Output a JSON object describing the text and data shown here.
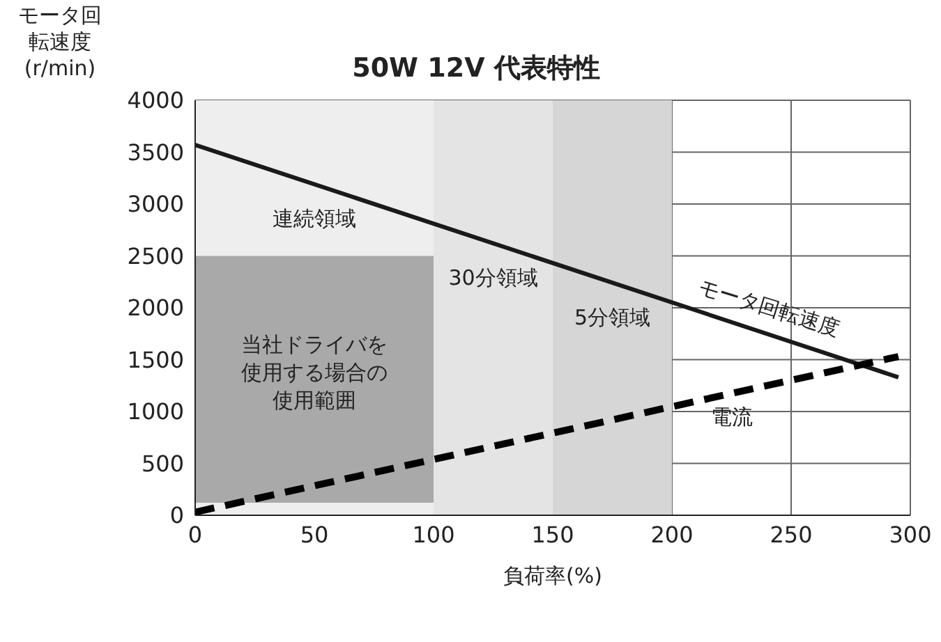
{
  "chart_data": {
    "type": "line",
    "title": "50W 12V 代表特性",
    "xlabel": "負荷率(%)",
    "ylabel": "モータ回転速度(r/min)",
    "x": [
      0,
      295
    ],
    "series": [
      {
        "name": "モータ回転速度",
        "color": "#1a1a1a",
        "values": [
          3570,
          1330
        ],
        "line_style": "solid"
      },
      {
        "name": "電流",
        "color": "#000000",
        "values": [
          30,
          1530
        ],
        "line_style": "dashed"
      }
    ],
    "xlim": [
      0,
      300
    ],
    "xticks": [
      0,
      50,
      100,
      150,
      200,
      250,
      300
    ],
    "ylim": [
      0,
      4000
    ],
    "yticks": [
      0,
      500,
      1000,
      1500,
      2000,
      2500,
      3000,
      3500,
      4000
    ],
    "grid": true,
    "legend": false,
    "marker": "none",
    "bands": [
      {
        "axis": "x",
        "from": 0,
        "to": 100,
        "color": "#eeeeee",
        "label": "連続領域"
      },
      {
        "axis": "x",
        "from": 100,
        "to": 150,
        "color": "#e4e4e4",
        "label": "30分領域"
      },
      {
        "axis": "x",
        "from": 150,
        "to": 200,
        "color": "#d6d6d6",
        "label": "5分領域"
      },
      {
        "axis": "y",
        "from": 120,
        "to": 2500,
        "color": "#a9a9a9",
        "label": "当社ドライバを使用する場合の使用範囲"
      }
    ]
  }
}
